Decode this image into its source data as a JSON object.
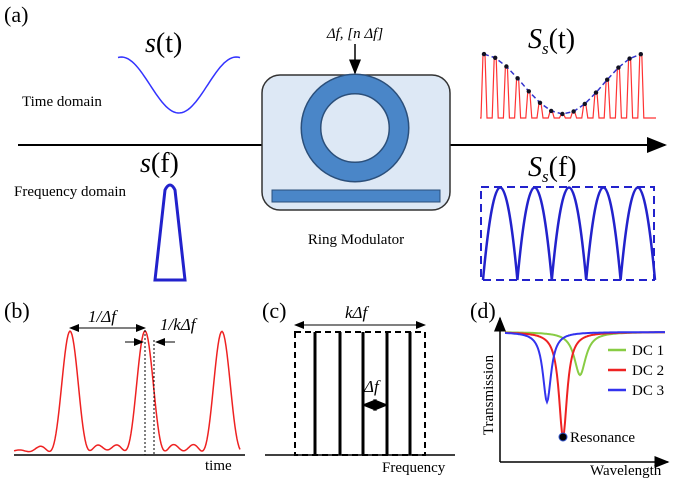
{
  "panel_a": {
    "label": "(a)",
    "time_signal": {
      "main": "s",
      "arg": "(t)"
    },
    "time_domain": "Time domain",
    "freq_signal": {
      "main": "s",
      "arg": "(f)"
    },
    "frequency_domain": "Frequency domain",
    "drive": "Δf, [n Δf]",
    "modulator": "Ring Modulator",
    "sampled_time": {
      "main": "S",
      "sub": "s",
      "arg": "(t)"
    },
    "sampled_freq": {
      "main": "S",
      "sub": "s",
      "arg": "(f)"
    }
  },
  "panel_b": {
    "label": "(b)",
    "period": "1/Δf",
    "width": "1/kΔf",
    "axis": "time"
  },
  "panel_c": {
    "label": "(c)",
    "span": "kΔf",
    "spacing": "Δf",
    "axis": "Frequency"
  },
  "panel_d": {
    "label": "(d)",
    "y_axis": "Transmission",
    "x_axis": "Wavelength",
    "legend": [
      "DC 1",
      "DC 2",
      "DC 3"
    ],
    "point": "Resonance"
  }
}
